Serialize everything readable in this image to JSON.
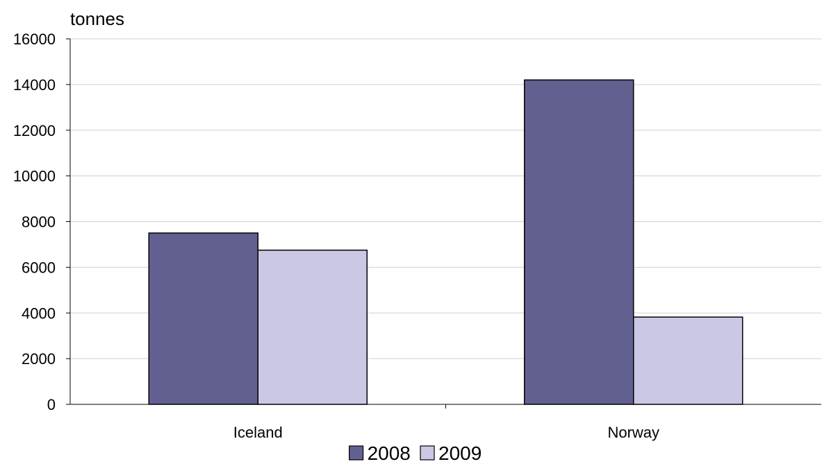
{
  "chart_data": {
    "type": "bar",
    "title": "",
    "xlabel": "",
    "ylabel": "tonnes",
    "categories": [
      "Iceland",
      "Norway"
    ],
    "series": [
      {
        "name": "2008",
        "values": [
          7500,
          14200
        ],
        "color": "#626090"
      },
      {
        "name": "2009",
        "values": [
          6750,
          3820
        ],
        "color": "#cac8e4"
      }
    ],
    "ylim": [
      0,
      16000
    ],
    "yticks": [
      0,
      2000,
      4000,
      6000,
      8000,
      10000,
      12000,
      14000,
      16000
    ],
    "grid": true,
    "legend_position": "bottom-center"
  },
  "colors": {
    "gridline": "#d0d0d0",
    "axis": "#000000",
    "bar_outline": "#000000"
  }
}
